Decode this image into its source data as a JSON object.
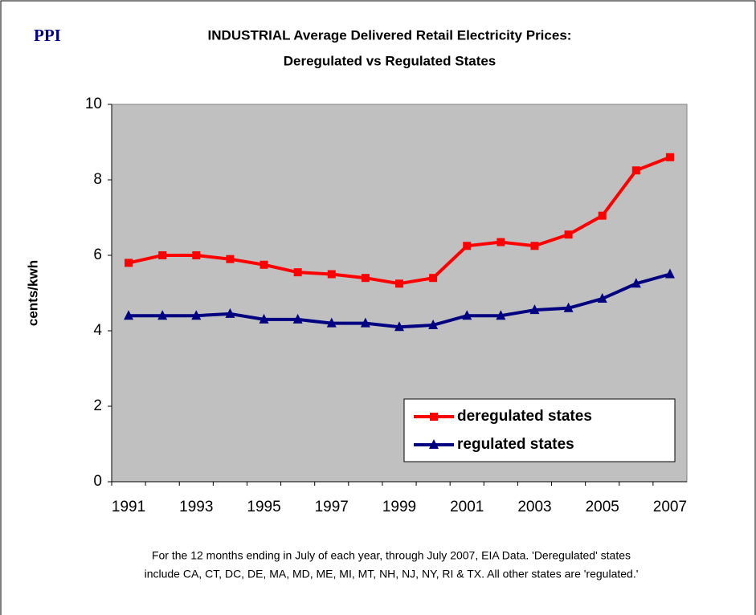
{
  "logo": "PPI",
  "chart_data": {
    "type": "line",
    "title": [
      "INDUSTRIAL Average Delivered Retail Electricity Prices:",
      "Deregulated vs Regulated States"
    ],
    "y_label": "cents/kwh",
    "categories": [
      "1991",
      null,
      "1993",
      null,
      "1995",
      null,
      "1997",
      null,
      "1999",
      null,
      "2001",
      null,
      "2003",
      null,
      "2005",
      null,
      "2007"
    ],
    "series": [
      {
        "name": "deregulated states",
        "color": "#ff0000",
        "marker": "square",
        "values": [
          5.8,
          6.0,
          6.0,
          5.9,
          5.75,
          5.55,
          5.5,
          5.4,
          5.25,
          5.4,
          6.25,
          6.35,
          6.25,
          6.55,
          7.05,
          8.25,
          8.6
        ]
      },
      {
        "name": "regulated states",
        "color": "#000080",
        "marker": "triangle",
        "values": [
          4.4,
          4.4,
          4.4,
          4.45,
          4.3,
          4.3,
          4.2,
          4.2,
          4.1,
          4.15,
          4.4,
          4.4,
          4.55,
          4.6,
          4.85,
          5.25,
          5.5
        ]
      }
    ],
    "ylim": [
      0,
      10
    ],
    "yticks": [
      0,
      2,
      4,
      6,
      8,
      10
    ],
    "plot_background": "#c0c0c0",
    "legend": "lower right",
    "note": [
      "For the 12 months ending in July of each year, through July 2007, EIA Data.  'Deregulated' states",
      "include CA, CT, DC, DE, MA, MD, ME, MI, MT, NH, NJ, NY, RI & TX.  All other states are 'regulated.'"
    ]
  }
}
